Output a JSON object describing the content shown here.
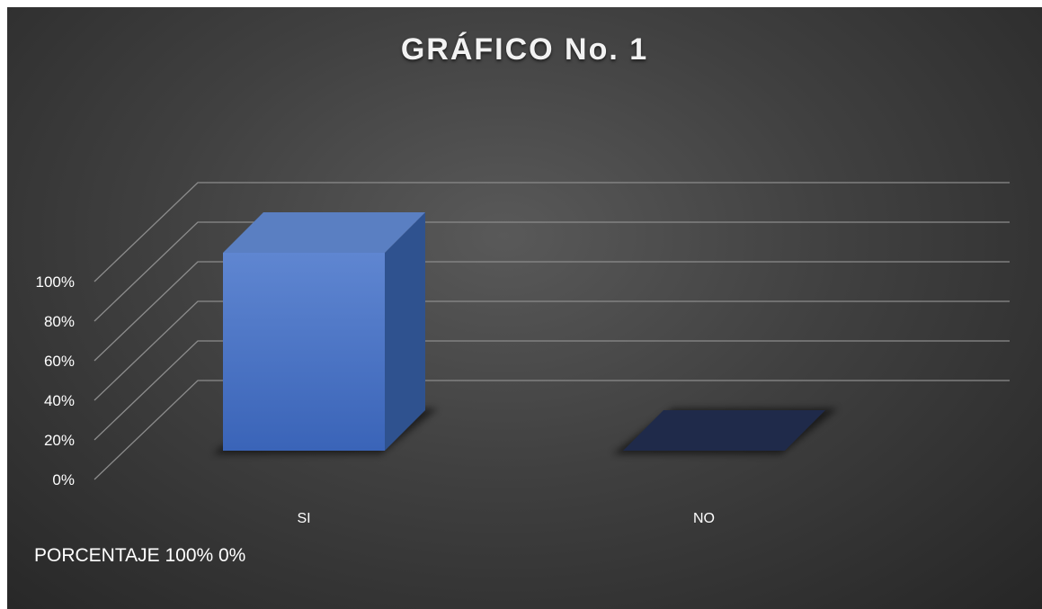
{
  "chart_data": {
    "type": "bar",
    "title": "GRÁFICO No. 1",
    "categories": [
      "SI",
      "NO"
    ],
    "series": [
      {
        "name": "PORCENTAJE",
        "values": [
          100,
          0
        ]
      }
    ],
    "ylim": [
      0,
      100
    ],
    "y_ticks": [
      "0%",
      "20%",
      "40%",
      "60%",
      "80%",
      "100%"
    ],
    "legend_text": "PORCENTAJE 100% 0%",
    "legend_position": "bottom-left",
    "grid": true,
    "style": "3d-column",
    "colors": {
      "bar_front": "#4472c4",
      "bar_top": "#5a7fc2",
      "bar_side": "#2f528f",
      "zero_bar": "#1f2a4a",
      "gridline": "#8c8c8c",
      "background": "#404040",
      "text": "#ffffff"
    }
  }
}
